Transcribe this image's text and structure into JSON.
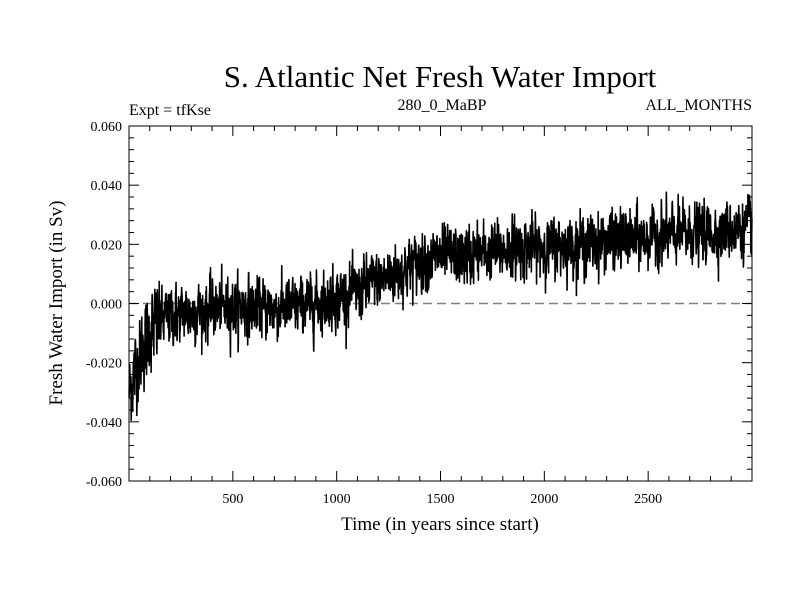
{
  "chart_data": {
    "type": "line",
    "title": "S. Atlantic Net Fresh Water Import",
    "subtitle_left": "Expt = tfKse",
    "subtitle_center": "280_0_MaBP",
    "subtitle_right": "ALL_MONTHS",
    "xlabel": "Time (in years since start)",
    "ylabel": "Fresh Water Import (in Sv)",
    "xlim": [
      0,
      3000
    ],
    "ylim": [
      -0.06,
      0.06
    ],
    "x_ticks": [
      500,
      1000,
      1500,
      2000,
      2500
    ],
    "x_tick_labels": [
      "500",
      "1000",
      "1500",
      "2000",
      "2500"
    ],
    "y_ticks": [
      -0.06,
      -0.04,
      -0.02,
      0.0,
      0.02,
      0.04,
      0.06
    ],
    "y_tick_labels": [
      "-0.060",
      "-0.040",
      "-0.020",
      "0.000",
      "0.020",
      "0.040",
      "0.060"
    ],
    "reference_line": {
      "y": 0.0,
      "style": "dashed",
      "color": "#808080"
    },
    "series": [
      {
        "name": "Net Fresh Water Import",
        "color": "#000000",
        "trend_x": [
          0,
          50,
          100,
          150,
          200,
          300,
          400,
          500,
          600,
          700,
          800,
          900,
          1000,
          1100,
          1200,
          1300,
          1400,
          1500,
          1600,
          1700,
          1800,
          1900,
          2000,
          2100,
          2200,
          2300,
          2400,
          2500,
          2600,
          2700,
          2800,
          2900,
          3000
        ],
        "trend_y": [
          -0.03,
          -0.018,
          -0.01,
          -0.006,
          -0.004,
          -0.003,
          -0.002,
          -0.001,
          -0.001,
          -0.002,
          -0.001,
          0.0,
          0.002,
          0.004,
          0.008,
          0.011,
          0.014,
          0.016,
          0.016,
          0.017,
          0.018,
          0.019,
          0.019,
          0.02,
          0.02,
          0.021,
          0.022,
          0.022,
          0.023,
          0.024,
          0.024,
          0.025,
          0.026
        ],
        "noise_amplitude": 0.0045,
        "n_points": 3000
      }
    ]
  }
}
